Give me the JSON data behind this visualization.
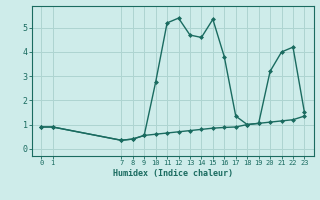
{
  "xlabel": "Humidex (Indice chaleur)",
  "background_color": "#ceecea",
  "grid_color": "#aed4d1",
  "line_color": "#1a6b60",
  "series1_x": [
    0,
    1,
    7,
    8,
    9,
    10,
    11,
    12,
    13,
    14,
    15,
    16,
    17,
    18,
    19,
    20,
    21,
    22,
    23
  ],
  "series1_y": [
    0.9,
    0.9,
    0.35,
    0.4,
    0.55,
    2.75,
    5.2,
    5.4,
    4.7,
    4.6,
    5.35,
    3.8,
    1.35,
    1.0,
    1.05,
    3.2,
    4.0,
    4.2,
    1.5
  ],
  "series2_x": [
    0,
    1,
    7,
    8,
    9,
    10,
    11,
    12,
    13,
    14,
    15,
    16,
    17,
    18,
    19,
    20,
    21,
    22,
    23
  ],
  "series2_y": [
    0.9,
    0.9,
    0.35,
    0.4,
    0.55,
    0.6,
    0.65,
    0.7,
    0.75,
    0.8,
    0.85,
    0.88,
    0.9,
    1.0,
    1.05,
    1.1,
    1.15,
    1.2,
    1.35
  ],
  "ylim": [
    -0.3,
    5.9
  ],
  "xlim": [
    -0.8,
    23.8
  ],
  "yticks": [
    0,
    1,
    2,
    3,
    4,
    5
  ],
  "xticks": [
    0,
    1,
    7,
    8,
    9,
    10,
    11,
    12,
    13,
    14,
    15,
    16,
    17,
    18,
    19,
    20,
    21,
    22,
    23
  ],
  "tick_fontsize": 5.0,
  "label_fontsize": 6.0
}
